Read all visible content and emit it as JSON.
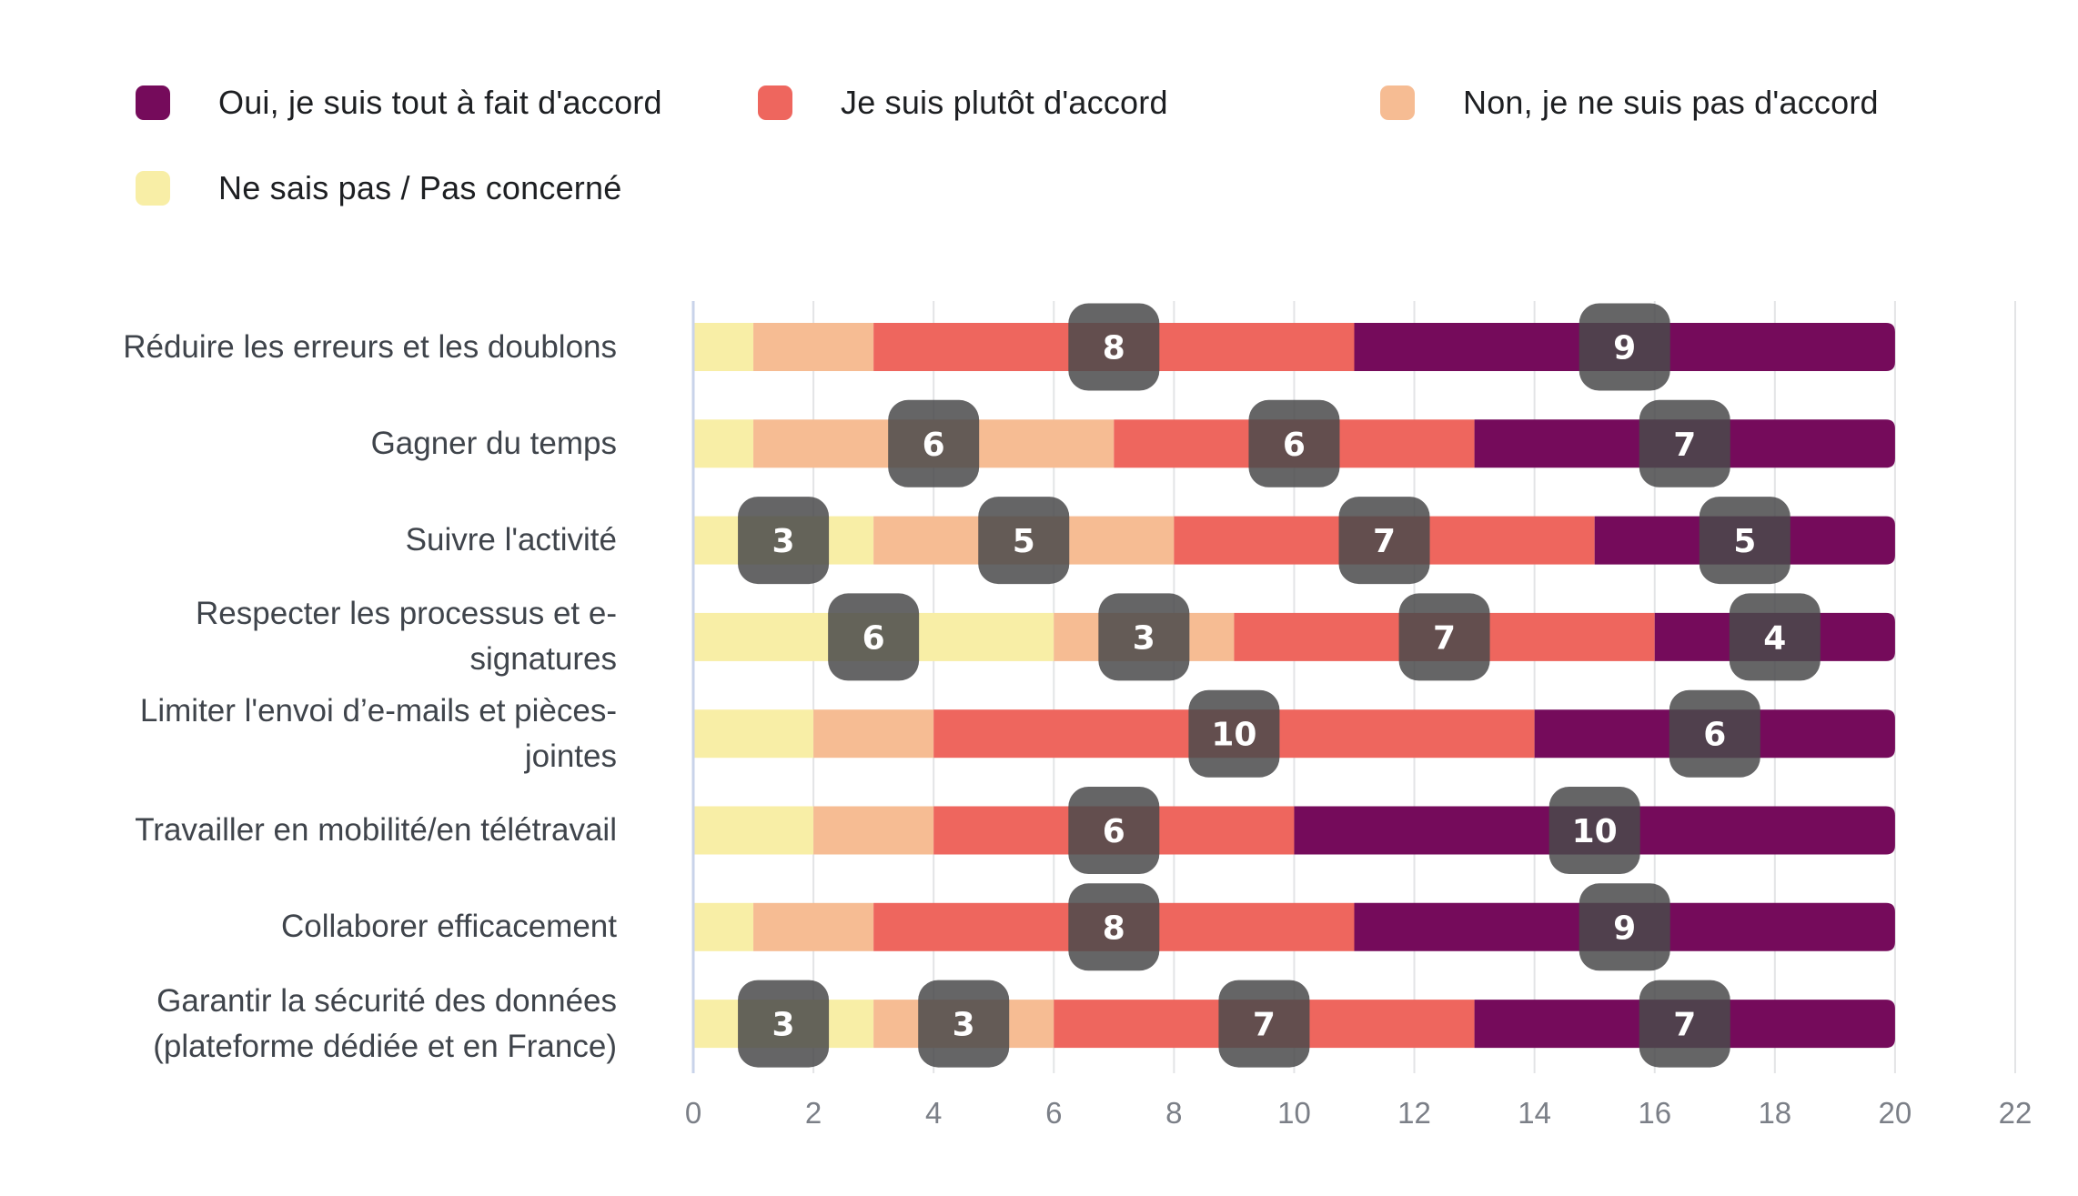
{
  "chart_data": {
    "type": "bar",
    "orientation": "horizontal",
    "stacked": true,
    "title": "",
    "xlabel": "",
    "ylabel": "",
    "xlim": [
      0,
      22
    ],
    "x_ticks": [
      "0",
      "2",
      "4",
      "6",
      "8",
      "10",
      "12",
      "14",
      "16",
      "18",
      "20",
      "22"
    ],
    "grid": true,
    "legend_position": "top",
    "categories": [
      "Réduire les erreurs et les doublons",
      "Gagner du temps",
      "Suivre l'activité",
      "Respecter les processus et e-\nsignatures",
      "Limiter l'envoi d’e-mails et pièces-\njointes",
      "Travailler en mobilité/en télétravail",
      "Collaborer efficacement",
      "Garantir la sécurité des données\n(plateforme dédiée et en France)"
    ],
    "series": [
      {
        "name": "Ne sais pas / Pas concerné",
        "color": "#f8eea6",
        "values": [
          1,
          1,
          3,
          6,
          2,
          2,
          1,
          3
        ]
      },
      {
        "name": "Non, je ne suis pas d'accord",
        "color": "#f6bc93",
        "values": [
          2,
          6,
          5,
          3,
          2,
          2,
          2,
          3
        ]
      },
      {
        "name": "Je suis plutôt d'accord",
        "color": "#ee665e",
        "values": [
          8,
          6,
          7,
          7,
          10,
          6,
          8,
          7
        ]
      },
      {
        "name": "Oui, je suis tout à fait d'accord",
        "color": "#750b5b",
        "values": [
          9,
          7,
          5,
          4,
          6,
          10,
          9,
          7
        ]
      }
    ],
    "data_labels_min_value": 3
  },
  "legend": {
    "items": [
      {
        "label": "Oui, je suis tout à fait d'accord",
        "color": "#750b5b"
      },
      {
        "label": "Je suis plutôt d'accord",
        "color": "#ee665e"
      },
      {
        "label": "Non, je ne suis pas d'accord",
        "color": "#f6bc93"
      },
      {
        "label": "Ne sais pas / Pas concerné",
        "color": "#f8eea6"
      }
    ]
  },
  "colors": {
    "badge": "#4a4a4b",
    "grid": "#e3e4e6",
    "axis": "#c9d3ea"
  }
}
